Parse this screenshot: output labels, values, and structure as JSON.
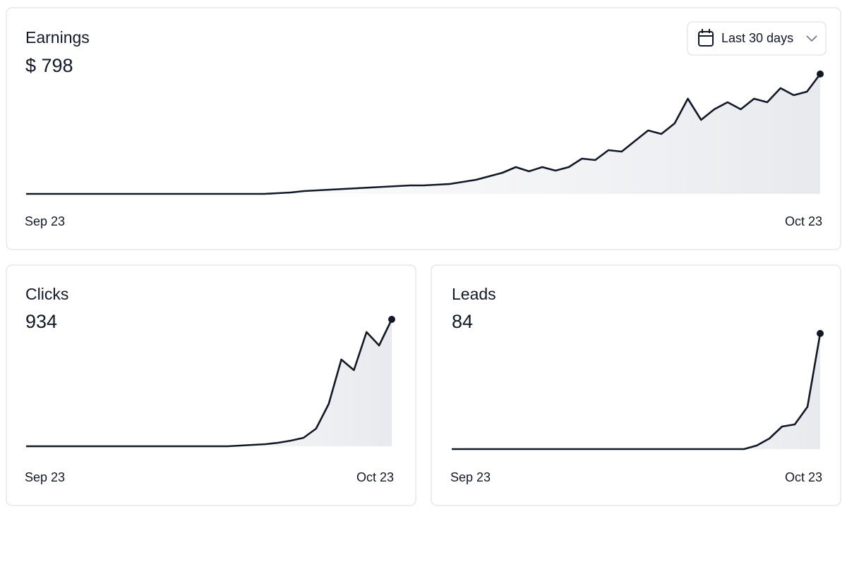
{
  "date_range": "Last 30 days",
  "chart_data": [
    {
      "type": "line",
      "title": "Earnings",
      "headline": "$ 798",
      "color": "#111827",
      "categories": [
        "Sep 23",
        null,
        null,
        null,
        null,
        null,
        null,
        null,
        null,
        null,
        null,
        null,
        null,
        null,
        null,
        null,
        null,
        null,
        null,
        null,
        null,
        null,
        null,
        null,
        null,
        null,
        null,
        null,
        null,
        null,
        null,
        null,
        null,
        null,
        null,
        null,
        null,
        null,
        null,
        null,
        null,
        null,
        null,
        null,
        null,
        null,
        null,
        null,
        null,
        null,
        null,
        null,
        null,
        null,
        null,
        null,
        null,
        null,
        null,
        null,
        "Oct 23"
      ],
      "values": [
        0,
        0,
        0,
        0,
        0,
        0,
        0,
        0,
        0,
        0,
        0,
        0,
        0,
        0,
        0,
        0,
        0,
        0,
        0,
        1,
        2,
        4,
        5,
        6,
        7,
        8,
        9,
        10,
        11,
        12,
        12,
        13,
        14,
        17,
        20,
        25,
        30,
        38,
        32,
        38,
        33,
        38,
        50,
        48,
        62,
        60,
        75,
        90,
        85,
        100,
        135,
        105,
        120,
        130,
        120,
        135,
        130,
        150,
        140,
        145,
        170
      ],
      "ylim": [
        0,
        170
      ]
    },
    {
      "type": "line",
      "title": "Clicks",
      "headline": "934",
      "color": "#111827",
      "categories": [
        "Sep 23",
        null,
        null,
        null,
        null,
        null,
        null,
        null,
        null,
        null,
        null,
        null,
        null,
        null,
        null,
        null,
        null,
        null,
        null,
        null,
        null,
        null,
        null,
        null,
        null,
        null,
        null,
        null,
        null,
        "Oct 23"
      ],
      "values": [
        0,
        0,
        0,
        0,
        0,
        0,
        0,
        0,
        0,
        0,
        0,
        0,
        0,
        0,
        0,
        0,
        0,
        1,
        2,
        3,
        5,
        8,
        12,
        25,
        60,
        123,
        108,
        162,
        143,
        180
      ],
      "ylim": [
        0,
        180
      ]
    },
    {
      "type": "line",
      "title": "Leads",
      "headline": "84",
      "color": "#111827",
      "categories": [
        "Sep 23",
        null,
        null,
        null,
        null,
        null,
        null,
        null,
        null,
        null,
        null,
        null,
        null,
        null,
        null,
        null,
        null,
        null,
        null,
        null,
        null,
        null,
        null,
        null,
        null,
        null,
        null,
        null,
        null,
        "Oct 23"
      ],
      "values": [
        0,
        0,
        0,
        0,
        0,
        0,
        0,
        0,
        0,
        0,
        0,
        0,
        0,
        0,
        0,
        0,
        0,
        0,
        0,
        0,
        0,
        0,
        0,
        0,
        5,
        15,
        32,
        35,
        60,
        164
      ],
      "ylim": [
        0,
        164
      ]
    }
  ]
}
